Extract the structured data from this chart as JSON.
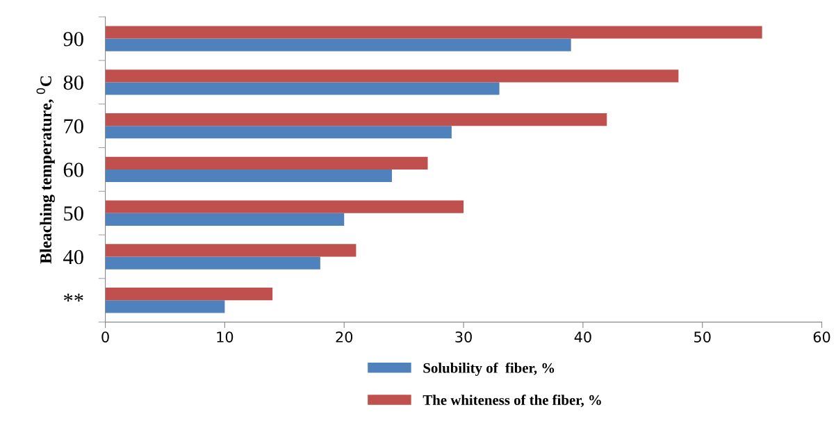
{
  "chart_data": {
    "type": "bar",
    "orientation": "horizontal",
    "ylabel": "Bleaching temperature, $^{0}$C",
    "categories": [
      "90",
      "80",
      "70",
      "60",
      "50",
      "40",
      "**"
    ],
    "series": [
      {
        "name": "Solubility of  fiber, %",
        "color": "#4f81bd",
        "values": [
          39,
          33,
          29,
          24,
          20,
          18,
          10
        ]
      },
      {
        "name": "The whiteness of the fiber, %",
        "color": "#c0504d",
        "values": [
          55,
          48,
          42,
          27,
          30,
          21,
          14
        ]
      }
    ],
    "xlim": [
      0,
      60
    ],
    "xticks": [
      0,
      10,
      20,
      30,
      40,
      50,
      60
    ],
    "grid": false,
    "legend": "bottom"
  }
}
